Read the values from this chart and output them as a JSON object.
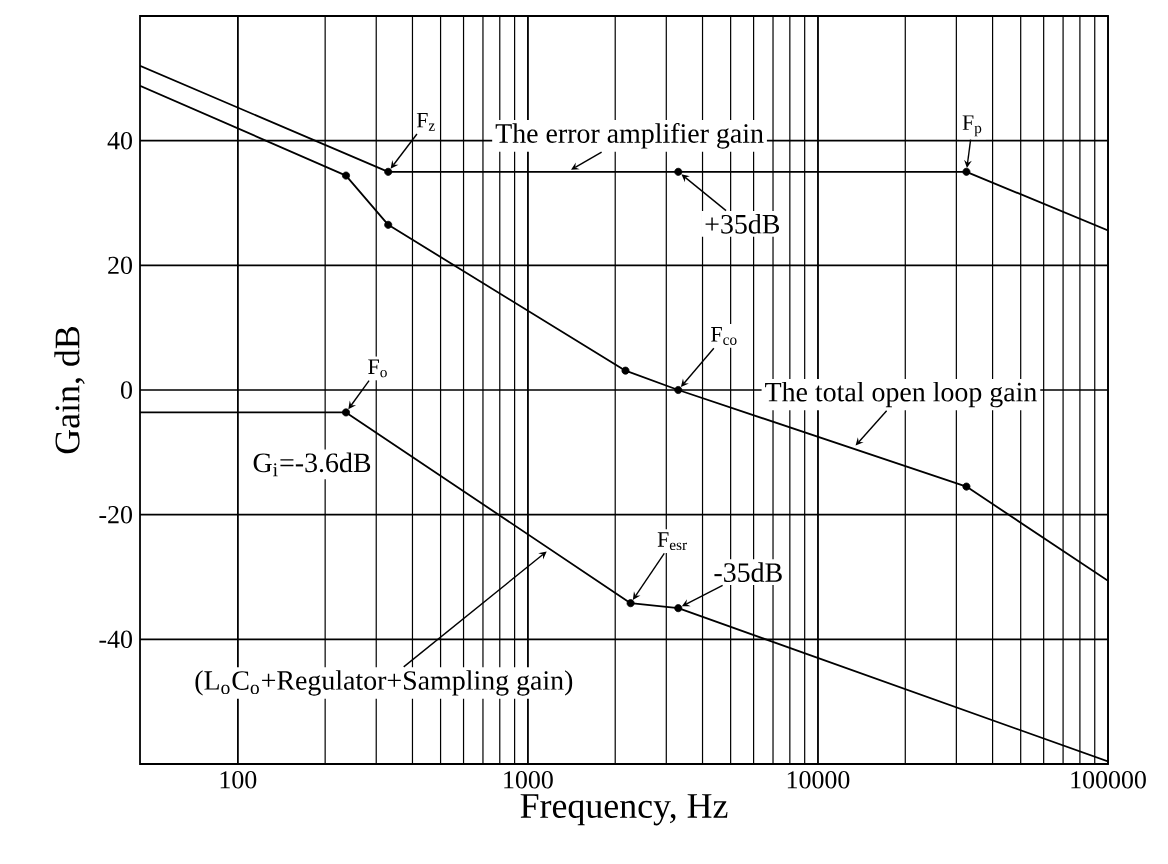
{
  "chart_data": {
    "type": "line",
    "xlabel": "Frequency, Hz",
    "ylabel": "Gain, dB",
    "log": "x",
    "grid": true,
    "xlim": [
      46,
      100000
    ],
    "xticks": [
      100,
      1000,
      10000,
      100000
    ],
    "ylim": [
      -60,
      60
    ],
    "yticks": [
      -40,
      -20,
      0,
      20,
      40
    ],
    "series": [
      {
        "color": "#000000",
        "x": [
          46,
          330,
          3300,
          32500,
          100000
        ],
        "values": [
          52,
          35,
          35,
          35,
          25.6
        ]
      },
      {
        "color": "#000000",
        "x": [
          46,
          236,
          330,
          2170,
          3300,
          32500,
          100000
        ],
        "values": [
          48.8,
          34.4,
          26.5,
          3.1,
          0,
          -15.5,
          -30.6
        ]
      },
      {
        "color": "#000000",
        "x": [
          46,
          236,
          2260,
          3300,
          100000
        ],
        "values": [
          -3.6,
          -3.6,
          -34.2,
          -35,
          -59.6
        ]
      },
      {
        "type": "scatter",
        "marker": "circle",
        "color": "#000000",
        "x": [
          330,
          3300,
          32500,
          236,
          330,
          2170,
          3300,
          32500,
          236,
          2260,
          3300
        ],
        "values": [
          35,
          35,
          35,
          34.4,
          26.5,
          3.1,
          0,
          -15.5,
          -3.6,
          -34.2,
          -35
        ]
      }
    ],
    "annotations": [
      {
        "text": "F$_{z}$",
        "x": 330,
        "y": 35
      },
      {
        "text": "The error amplifier gain",
        "x": 1370,
        "y": 35
      },
      {
        "text": "+35dB",
        "x": 3300,
        "y": 35
      },
      {
        "text": "F$_{p}$",
        "x": 32500,
        "y": 35
      },
      {
        "text": "F$_{co}$",
        "x": 3300,
        "y": 0
      },
      {
        "text": "The total open loop gain",
        "x": 13200,
        "y": -9.4
      },
      {
        "text": "F$_{o}$",
        "x": 236,
        "y": -3.6
      },
      {
        "text": "G$_{i}$=-3.6dB",
        "x": 236,
        "y": -3.6
      },
      {
        "text": "F$_{esr}$",
        "x": 2260,
        "y": -34.2
      },
      {
        "text": "-35dB",
        "x": 3300,
        "y": -35
      },
      {
        "text": "(L$_{o}$C$_{o}$+Regulator+Sampling gain)",
        "x": 1190,
        "y": -25.5
      }
    ]
  }
}
